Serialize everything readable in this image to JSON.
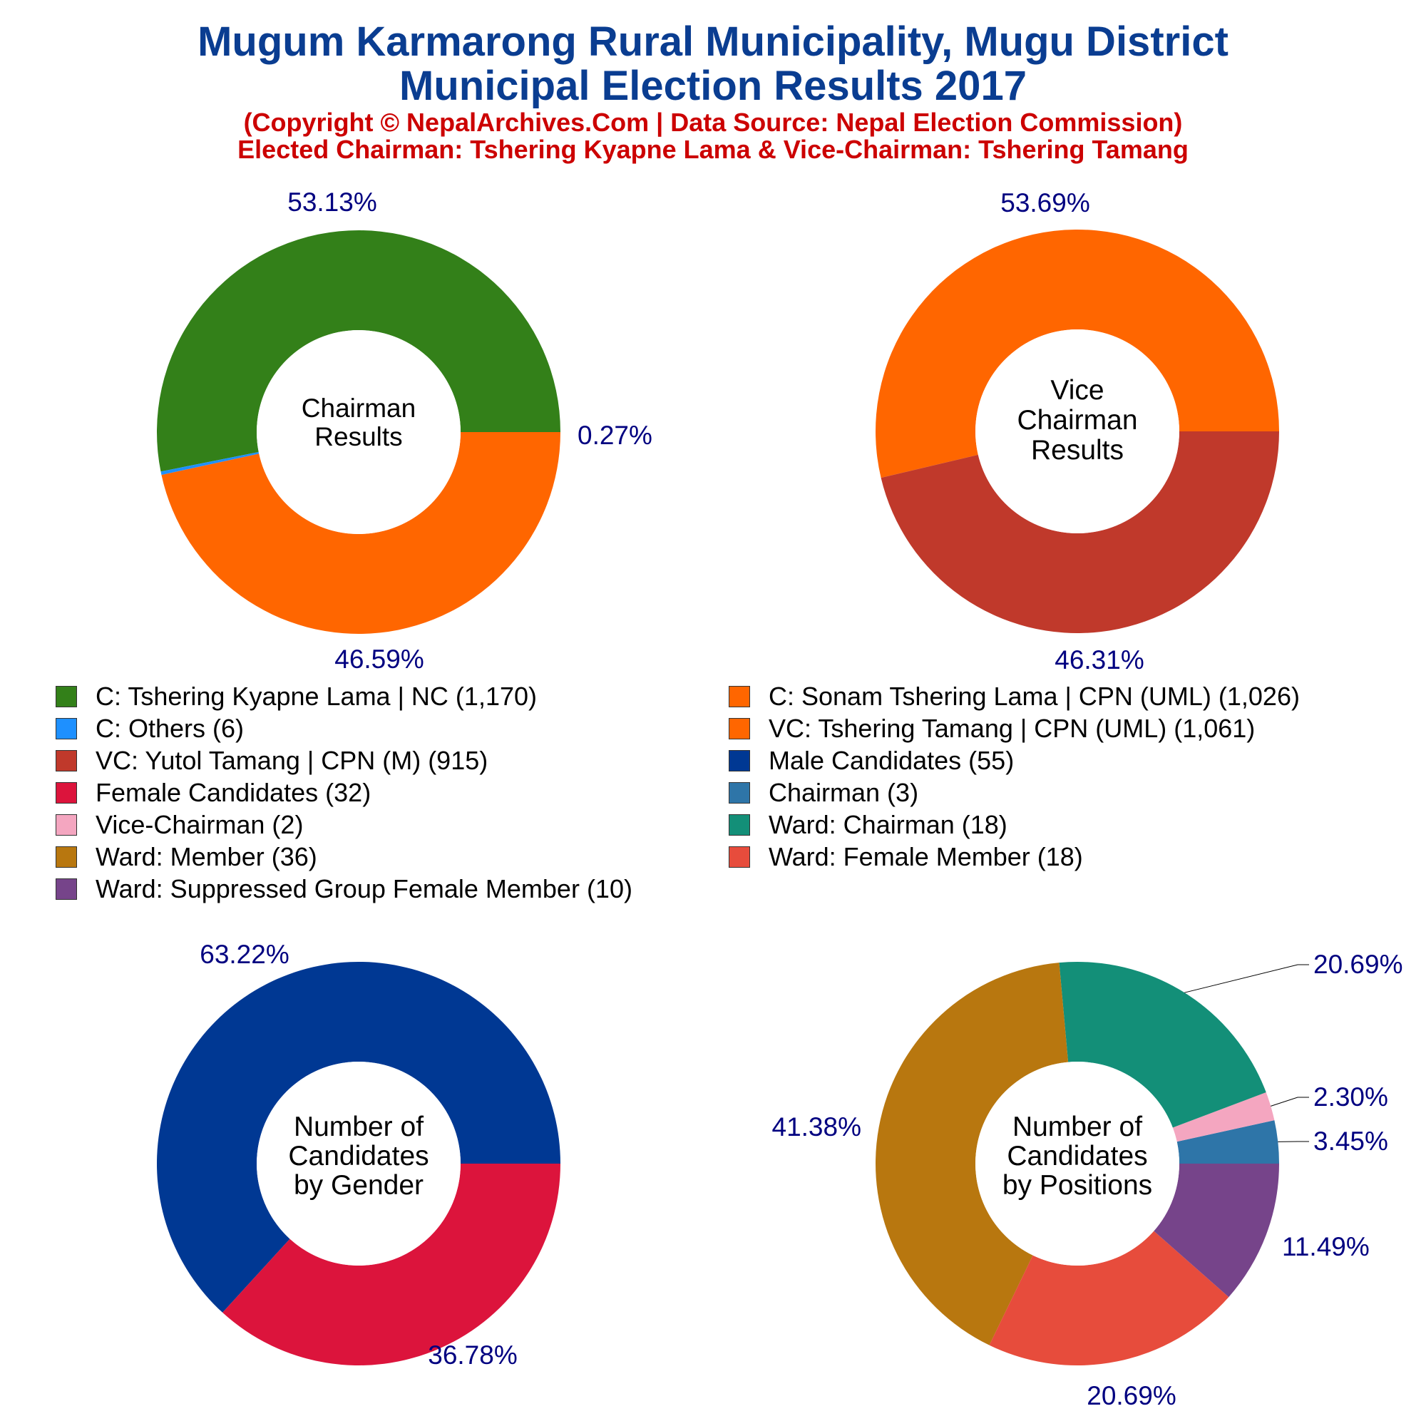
{
  "header": {
    "title_line1": "Mugum Karmarong Rural Municipality, Mugu District",
    "title_line2": "Municipal Election Results 2017",
    "subtitle_line1": "(Copyright © NepalArchives.Com | Data Source: Nepal Election Commission)",
    "subtitle_line2": "Elected Chairman: Tshering Kyapne Lama & Vice-Chairman: Tshering Tamang"
  },
  "colors": {
    "title": "#0a3d91",
    "subtitle": "#cc0000",
    "percent_label": "#000080"
  },
  "legend": [
    {
      "label": "C: Tshering Kyapne Lama | NC (1,170)",
      "color": "#338019"
    },
    {
      "label": "C: Sonam Tshering Lama | CPN (UML) (1,026)",
      "color": "#ff6600"
    },
    {
      "label": "C: Others (6)",
      "color": "#1e90ff"
    },
    {
      "label": "VC: Tshering Tamang | CPN (UML) (1,061)",
      "color": "#ff6600"
    },
    {
      "label": "VC: Yutol Tamang | CPN (M) (915)",
      "color": "#c0392b"
    },
    {
      "label": "Male Candidates (55)",
      "color": "#003893"
    },
    {
      "label": "Female Candidates (32)",
      "color": "#dc143c"
    },
    {
      "label": "Chairman (3)",
      "color": "#2e75a8"
    },
    {
      "label": "Vice-Chairman (2)",
      "color": "#f4a6c0"
    },
    {
      "label": "Ward: Chairman (18)",
      "color": "#138f78"
    },
    {
      "label": "Ward: Member (36)",
      "color": "#b8770f"
    },
    {
      "label": "Ward: Female Member (18)",
      "color": "#e74c3c"
    },
    {
      "label": "Ward: Suppressed Group Female Member (10)",
      "color": "#76448a"
    }
  ],
  "chart_data": [
    {
      "type": "pie",
      "donut": true,
      "center_label": [
        "Chairman",
        "Results"
      ],
      "slices": [
        {
          "label": "C: Tshering Kyapne Lama | NC",
          "value": 1170,
          "percent": "53.13%",
          "color": "#338019"
        },
        {
          "label": "C: Others",
          "value": 6,
          "percent": "0.27%",
          "color": "#1e90ff"
        },
        {
          "label": "C: Sonam Tshering Lama | CPN (UML)",
          "value": 1026,
          "percent": "46.59%",
          "color": "#ff6600"
        }
      ]
    },
    {
      "type": "pie",
      "donut": true,
      "center_label": [
        "Vice",
        "Chairman",
        "Results"
      ],
      "slices": [
        {
          "label": "VC: Tshering Tamang | CPN (UML)",
          "value": 1061,
          "percent": "53.69%",
          "color": "#ff6600"
        },
        {
          "label": "VC: Yutol Tamang | CPN (M)",
          "value": 915,
          "percent": "46.31%",
          "color": "#c0392b"
        }
      ]
    },
    {
      "type": "pie",
      "donut": true,
      "center_label": [
        "Number of",
        "Candidates",
        "by Gender"
      ],
      "slices": [
        {
          "label": "Male Candidates",
          "value": 55,
          "percent": "63.22%",
          "color": "#003893"
        },
        {
          "label": "Female Candidates",
          "value": 32,
          "percent": "36.78%",
          "color": "#dc143c"
        }
      ]
    },
    {
      "type": "pie",
      "donut": true,
      "center_label": [
        "Number of",
        "Candidates",
        "by Positions"
      ],
      "slices": [
        {
          "label": "Chairman",
          "value": 3,
          "percent": "3.45%",
          "color": "#2e75a8"
        },
        {
          "label": "Vice-Chairman",
          "value": 2,
          "percent": "2.30%",
          "color": "#f4a6c0"
        },
        {
          "label": "Ward: Chairman",
          "value": 18,
          "percent": "20.69%",
          "color": "#138f78"
        },
        {
          "label": "Ward: Member",
          "value": 36,
          "percent": "41.38%",
          "color": "#b8770f"
        },
        {
          "label": "Ward: Female Member",
          "value": 18,
          "percent": "20.69%",
          "color": "#e74c3c"
        },
        {
          "label": "Ward: Suppressed Group Female Member",
          "value": 10,
          "percent": "11.49%",
          "color": "#76448a"
        }
      ]
    }
  ]
}
